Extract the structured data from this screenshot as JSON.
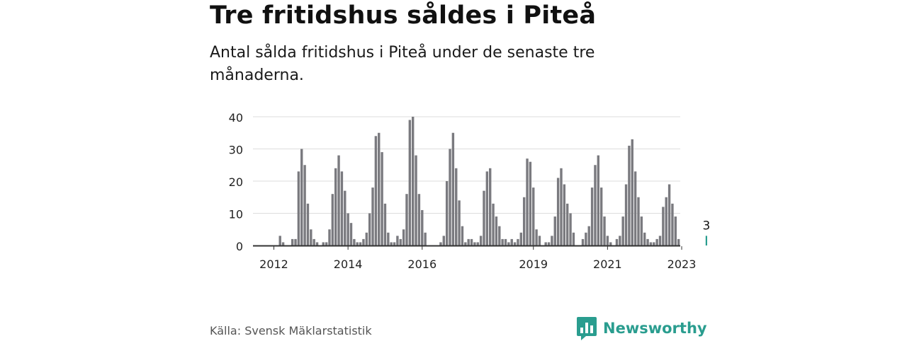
{
  "header": {
    "title": "Tre fritidshus såldes i Piteå",
    "subtitle": "Antal sålda fritidshus i Piteå under de senaste tre månaderna."
  },
  "footer": {
    "source": "Källa: Svensk Mäklarstatistik",
    "brand": "Newsworthy",
    "brand_icon": "bar-chart-icon"
  },
  "colors": {
    "bar": "#7a7a7f",
    "highlight": "#2a9d8f",
    "grid": "#dddddd",
    "axis": "#333333",
    "brand": "#2a9d8f"
  },
  "chart_data": {
    "type": "bar",
    "x_start": "2012-01",
    "interval": "month",
    "values": [
      0,
      0,
      3,
      1,
      0,
      0,
      2,
      2,
      23,
      30,
      25,
      13,
      5,
      2,
      1,
      0,
      1,
      1,
      5,
      16,
      24,
      28,
      23,
      17,
      10,
      7,
      2,
      1,
      1,
      2,
      4,
      10,
      18,
      34,
      35,
      29,
      13,
      4,
      1,
      1,
      3,
      2,
      5,
      16,
      39,
      40,
      28,
      16,
      11,
      4,
      0,
      0,
      0,
      0,
      1,
      3,
      20,
      30,
      35,
      24,
      14,
      6,
      1,
      2,
      2,
      1,
      1,
      3,
      17,
      23,
      24,
      13,
      9,
      6,
      2,
      2,
      1,
      2,
      1,
      2,
      4,
      15,
      27,
      26,
      18,
      5,
      3,
      0,
      1,
      1,
      3,
      9,
      21,
      24,
      19,
      13,
      10,
      4,
      0,
      0,
      2,
      4,
      6,
      18,
      25,
      28,
      18,
      9,
      3,
      1,
      0,
      2,
      3,
      9,
      19,
      31,
      33,
      23,
      15,
      9,
      4,
      2,
      1,
      1,
      2,
      3,
      12,
      15,
      19,
      13,
      9,
      2,
      0,
      0,
      0,
      0,
      0,
      0,
      0,
      0,
      3
    ],
    "highlight_index": 140,
    "highlight_label": "3",
    "y_ticks": [
      "0",
      "10",
      "20",
      "30",
      "40"
    ],
    "ylim": [
      0,
      40
    ],
    "x_ticks": [
      {
        "label": "2012",
        "value": "2012-01"
      },
      {
        "label": "2014",
        "value": "2014-01"
      },
      {
        "label": "2016",
        "value": "2016-01"
      },
      {
        "label": "2019",
        "value": "2019-01"
      },
      {
        "label": "2021",
        "value": "2021-01"
      },
      {
        "label": "2023",
        "value": "2023-01"
      }
    ],
    "grid": true
  }
}
